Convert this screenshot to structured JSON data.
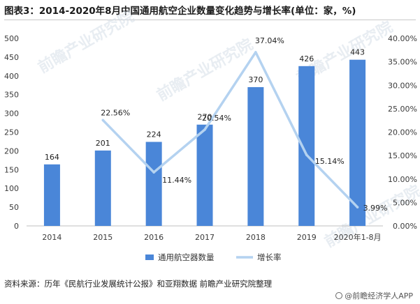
{
  "title": "图表3：2014-2020年8月中国通用航空企业数量变化趋势与增长率(单位：家，%)",
  "source": "资料来源：历年《民航行业发展统计公报》和亚翔数据 前瞻产业研究院整理",
  "brand": "@前瞻经济学人APP",
  "watermarks": [
    "前瞻产业研究院",
    "前瞻产业研究院",
    "前瞻产业研究院",
    "前瞻产业研究院"
  ],
  "chart_data": {
    "type": "bar",
    "categories": [
      "2014",
      "2015",
      "2016",
      "2017",
      "2018",
      "2019",
      "2020年1-8月"
    ],
    "series": [
      {
        "name": "通用航空器数量",
        "type": "bar",
        "axis": "left",
        "color": "#4a86d8",
        "values": [
          164,
          201,
          224,
          270,
          370,
          426,
          443
        ],
        "labels": [
          "164",
          "201",
          "224",
          "270",
          "370",
          "426",
          "443"
        ]
      },
      {
        "name": "增长率",
        "type": "line",
        "axis": "right",
        "color": "#b4d2f0",
        "values": [
          null,
          22.56,
          11.44,
          20.54,
          37.04,
          15.14,
          3.99
        ],
        "labels": [
          "",
          "22.56%",
          "11.44%",
          "20.54%",
          "37.04%",
          "15.14%",
          "3.99%"
        ]
      }
    ],
    "y_left": {
      "lim": [
        0,
        500
      ],
      "ticks": [
        0,
        50,
        100,
        150,
        200,
        250,
        300,
        350,
        400,
        450,
        500
      ],
      "tick_labels": [
        "0",
        "50",
        "100",
        "150",
        "200",
        "250",
        "300",
        "350",
        "400",
        "450",
        "500"
      ]
    },
    "y_right": {
      "lim": [
        0,
        40
      ],
      "ticks": [
        0,
        5,
        10,
        15,
        20,
        25,
        30,
        35,
        40
      ],
      "tick_labels": [
        "0.00%",
        "5.00%",
        "10.00%",
        "15.00%",
        "20.00%",
        "25.00%",
        "30.00%",
        "35.00%",
        "40.00%"
      ]
    },
    "grid": false,
    "legend": "bottom"
  }
}
